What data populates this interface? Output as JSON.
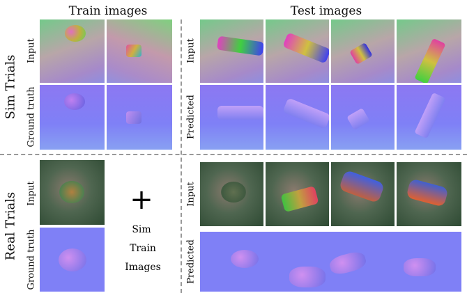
{
  "headers": [
    "Train images",
    "Test images"
  ],
  "sections": [
    {
      "title": "Sim Trials",
      "train_labels": [
        "Input",
        "Ground truth"
      ],
      "test_labels": [
        "Input",
        "Predicted"
      ]
    },
    {
      "title": "Real Trials",
      "train_labels": [
        "Input",
        "Ground truth"
      ],
      "test_labels": [
        "Input",
        "Predicted"
      ],
      "note": {
        "symbol": "+",
        "lines": [
          "Sim",
          "Train",
          "Images"
        ]
      }
    }
  ]
}
